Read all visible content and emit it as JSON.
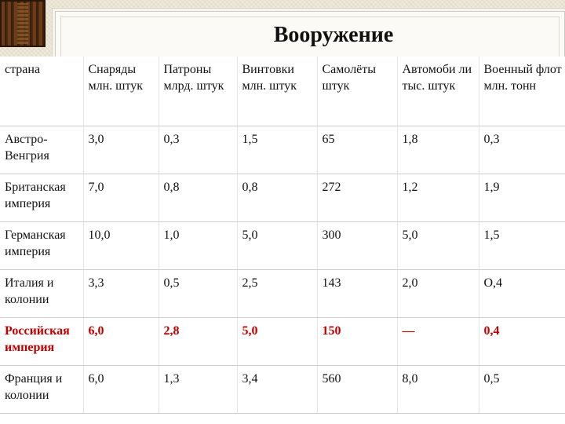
{
  "title": "Вооружение",
  "colors": {
    "highlight_row": "#c00000",
    "background": "#efe9da"
  },
  "table": {
    "headers": [
      "страна",
      "Снаряды млн. штук",
      "Патроны млрд. штук",
      "Винтовки млн. штук",
      "Самолёты штук",
      "Автомоби ли тыс. штук",
      "Военный флот млн. тонн"
    ],
    "rows": [
      [
        "Австро-Венгрия",
        "3,0",
        "0,3",
        "1,5",
        "65",
        "1,8",
        "0,3"
      ],
      [
        "Британская империя",
        "7,0",
        "0,8",
        "0,8",
        "272",
        "1,2",
        "1,9"
      ],
      [
        "Германская империя",
        "10,0",
        "1,0",
        "5,0",
        "300",
        "5,0",
        "1,5"
      ],
      [
        "Италия и колонии",
        "3,3",
        "0,5",
        "2,5",
        "143",
        "2,0",
        "О,4"
      ],
      [
        "Российская империя",
        "6,0",
        "2,8",
        "5,0",
        "150",
        "—",
        "0,4"
      ],
      [
        "Франция и колонии",
        "6,0",
        "1,3",
        "3,4",
        "560",
        "8,0",
        "0,5"
      ]
    ]
  }
}
